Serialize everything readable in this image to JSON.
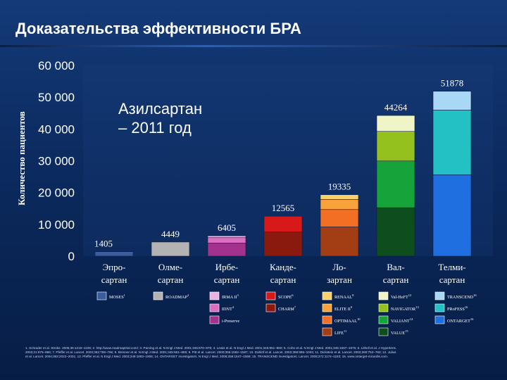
{
  "slide": {
    "title": "Доказательства эффективности БРА",
    "footnote": "1. Schrader et al. Stroke. 2005;36:1218–1226; 2. http://www.roadmaptrial.com/; 3. Parving et al. N Engl J Med. 2001;345:870–878; 4. Lewis et al. N Engl J Med. 2001;345:851–860; 5. Cohn et al. N Engl J Med. 2001;345:1667–1675; 6. Lithell et al. J Hypertens. 2003;21:875–886; 7. Pfeffer et al. Lancet. 2003;362:759–766; 8. Brenner et al. N Engl J Med. 2001;345:861–869; 9. Pitt et al. Lancet. 2000;355:1582–1587; 10. Dahlöf et al. Lancet. 2002;359:995–1003; 11. Dickstein et al. Lancet. 2002;360:752–760; 12. Julius et al. Lancet. 2004;363:2022–2031; 13. Pfeffer et al. N Engl J Med. 2003;349:1893–1906; 14. ONTARGET Investigators. N Engl J Med. 2008;358:1547–1559; 15. TRANSCEND Investigators. Lancet. 2008;372:1174–1183; 16. www.ontarget-micardis.com."
  },
  "colors": {
    "background": "#0b2a5e",
    "axis_text": "#ffffff",
    "label_text": "#ffffff"
  },
  "chart_data": {
    "type": "bar",
    "stacked": true,
    "title": "",
    "xlabel": "",
    "ylabel": "Количество пациентов",
    "ylim": [
      0,
      60000
    ],
    "yticks": [
      0,
      10000,
      20000,
      30000,
      40000,
      50000,
      60000
    ],
    "ytick_labels": [
      "0",
      "10 000",
      "20 000",
      "30 000",
      "40 000",
      "50 000",
      "60 000"
    ],
    "annotation": "Азилсартан\n– 2011 год",
    "categories": [
      "Эпро-\nсартан",
      "Олме-\nсартан",
      "Ирбе-\nсартан",
      "Канде-\nсартан",
      "Ло-\nзартан",
      "Вал-\nсартан",
      "Телми-\nсартан"
    ],
    "totals": [
      1405,
      4449,
      6405,
      12565,
      19335,
      44264,
      51878
    ],
    "total_labels": [
      "1405",
      "4449",
      "6405",
      "12565",
      "19335",
      "44264",
      "51878"
    ],
    "stacks": [
      {
        "category": "Эпро-\nсартан",
        "segments": [
          {
            "trial": "MOSES",
            "ref": "1",
            "value": 1405,
            "color": "#3a5d9e"
          }
        ]
      },
      {
        "category": "Олме-\nсартан",
        "segments": [
          {
            "trial": "ROADMAP",
            "ref": "2",
            "value": 4449,
            "color": "#b3b3b3"
          }
        ]
      },
      {
        "category": "Ирбе-\nсартан",
        "segments": [
          {
            "trial": "i-Preserve",
            "ref": "",
            "value": 4100,
            "color": "#a3328f"
          },
          {
            "trial": "IDNT",
            "ref": "4",
            "value": 1715,
            "color": "#d96ec3"
          },
          {
            "trial": "IRMA II",
            "ref": "3",
            "value": 590,
            "color": "#e8b3df"
          }
        ]
      },
      {
        "category": "Канде-\nсартан",
        "segments": [
          {
            "trial": "CHARM",
            "ref": "7",
            "value": 7599,
            "color": "#8a1a0e"
          },
          {
            "trial": "SCOPE",
            "ref": "6",
            "value": 4966,
            "color": "#d81919"
          }
        ]
      },
      {
        "category": "Ло-\nзартан",
        "segments": [
          {
            "trial": "LIFE",
            "ref": "11",
            "value": 9193,
            "color": "#a33d14"
          },
          {
            "trial": "OPTIMAAL",
            "ref": "10",
            "value": 5477,
            "color": "#f26f23"
          },
          {
            "trial": "ELITE II",
            "ref": "9",
            "value": 3152,
            "color": "#f7a23b"
          },
          {
            "trial": "RENAAL",
            "ref": "8",
            "value": 1513,
            "color": "#fbd26a"
          }
        ]
      },
      {
        "category": "Вал-\nсартан",
        "segments": [
          {
            "trial": "VALUE",
            "ref": "15",
            "value": 15245,
            "color": "#0e4d1c"
          },
          {
            "trial": "VALIANT",
            "ref": "14",
            "value": 14703,
            "color": "#16a33a"
          },
          {
            "trial": "NAVIGATOR",
            "ref": "13",
            "value": 9306,
            "color": "#95c11f"
          },
          {
            "trial": "Val-HeFT",
            "ref": "12",
            "value": 5010,
            "color": "#f0f5c8"
          }
        ]
      },
      {
        "category": "Телми-\nсартан",
        "segments": [
          {
            "trial": "ONTARGET",
            "ref": "16",
            "value": 25620,
            "color": "#1f6fe0"
          },
          {
            "trial": "PRoFESS",
            "ref": "16",
            "value": 20332,
            "color": "#23c0c4"
          },
          {
            "trial": "TRANSCEND",
            "ref": "16",
            "value": 5926,
            "color": "#a9d8f7"
          }
        ]
      }
    ],
    "legend_rows": [
      [
        "MOSES",
        "ROADMAP",
        "IRMA II",
        "SCOPE",
        "RENAAL",
        "Val-HeFT",
        "TRANSCEND"
      ],
      [
        null,
        null,
        "IDNT",
        "CHARM",
        "ELITE II",
        "NAVIGATOR",
        "PRoFESS"
      ],
      [
        null,
        null,
        "i-Preserve",
        null,
        "OPTIMAAL",
        "VALIANT",
        "ONTARGET"
      ],
      [
        null,
        null,
        null,
        null,
        "LIFE",
        "VALUE",
        null
      ]
    ]
  }
}
